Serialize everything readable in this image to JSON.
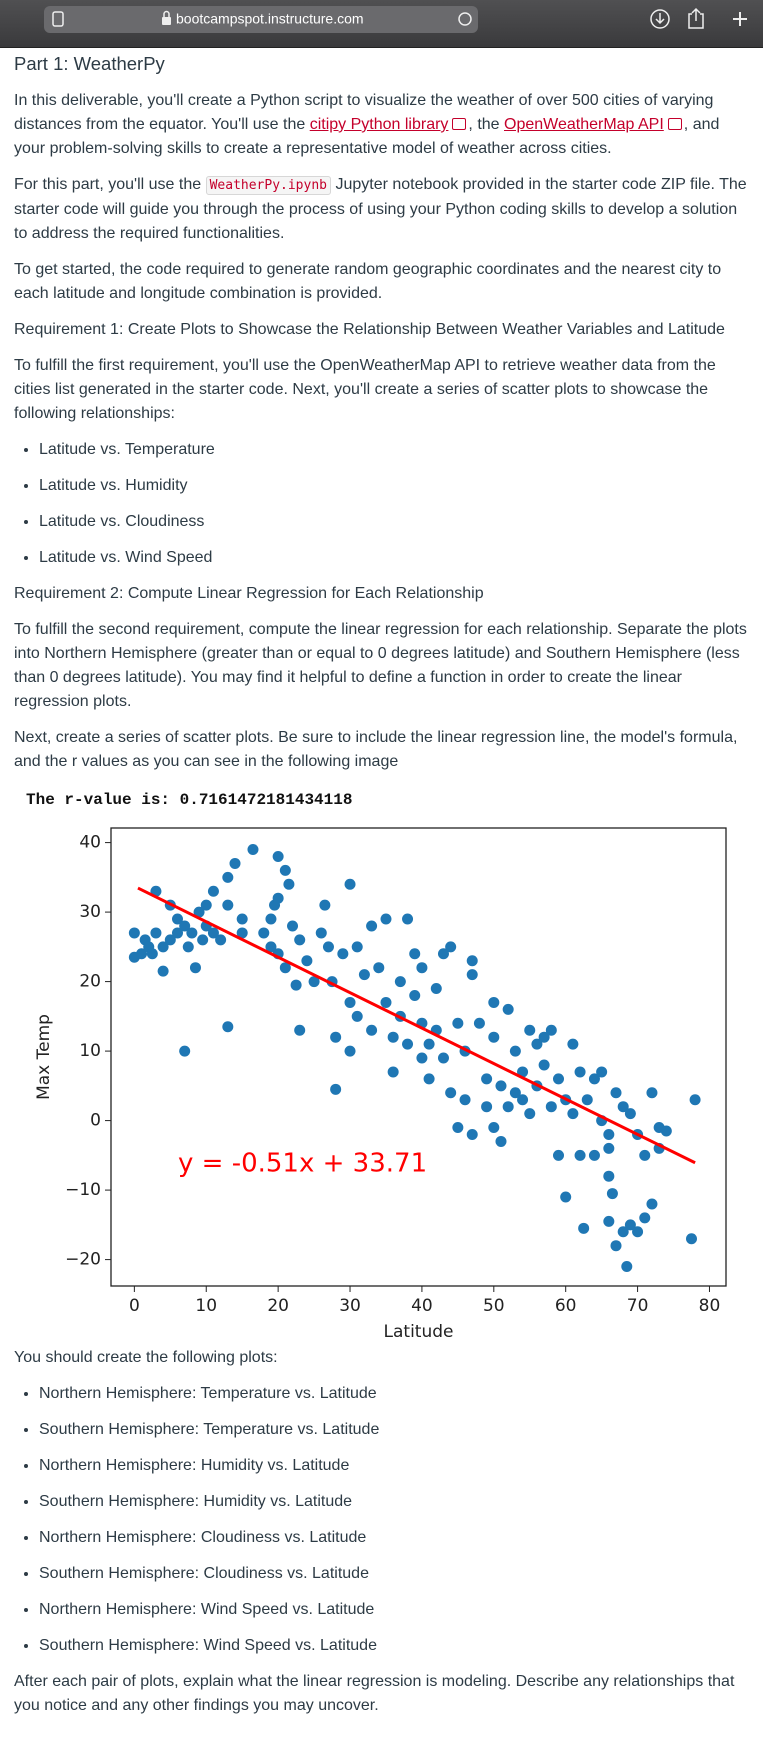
{
  "browser": {
    "url": "bootcampspot.instructure.com"
  },
  "document": {
    "title": "Part 1: WeatherPy",
    "intro": {
      "text_1": "In this deliverable, you'll create a Python script to visualize the weather of over 500 cities of varying distances from the equator. You'll use the ",
      "link_1": "citipy Python library",
      "text_2": ", the ",
      "link_2": "OpenWeatherMap API",
      "text_3": ", and your problem-solving skills to create a representative model of weather across cities."
    },
    "starter": {
      "text_1": "For this part, you'll use the ",
      "code": "WeatherPy.ipynb",
      "text_2": " Jupyter notebook provided in the starter code ZIP file. The starter code will guide you through the process of using your Python coding skills to develop a solution to address the required functionalities."
    },
    "get_started": "To get started, the code required to generate random geographic coordinates and the nearest city to each latitude and longitude combination is provided.",
    "requirement_1": "Requirement 1: Create Plots to Showcase the Relationship Between Weather Variables and Latitude",
    "requirement_1_text": "To fulfill the first requirement, you'll use the OpenWeatherMap API to retrieve weather data from the cities list generated in the starter code. Next, you'll create a series of scatter plots to showcase the following relationships:",
    "requirement_1_list": [
      "Latitude vs. Temperature",
      "Latitude vs. Humidity",
      "Latitude vs. Cloudiness",
      "Latitude vs. Wind Speed"
    ],
    "requirement_2": "Requirement 2: Compute Linear Regression for Each Relationship",
    "requirement_2_text": "To fulfill the second requirement, compute the linear regression for each relationship. Separate the plots into Northern Hemisphere (greater than or equal to 0 degrees latitude) and Southern Hemisphere (less than 0 degrees latitude). You may find it helpful to define a function in order to create the linear regression plots.",
    "next_text": "Next, create a series of scatter plots. Be sure to include the linear regression line, the model's formula, and the r values as you can see in the following image",
    "r_value": "The r-value is: 0.7161472181434118",
    "plots_intro": "You should create the following plots:",
    "plots_list": [
      "Northern Hemisphere: Temperature vs. Latitude",
      "Southern Hemisphere: Temperature vs. Latitude",
      "Northern Hemisphere: Humidity vs. Latitude",
      "Southern Hemisphere: Humidity vs. Latitude",
      "Northern Hemisphere: Cloudiness vs. Latitude",
      "Southern Hemisphere: Cloudiness vs. Latitude",
      "Northern Hemisphere: Wind Speed vs. Latitude",
      "Southern Hemisphere: Wind Speed vs. Latitude"
    ],
    "closing": "After each pair of plots, explain what the linear regression is modeling. Describe any relationships that you notice and any other findings you may uncover."
  },
  "chart_data": {
    "type": "scatter",
    "xlabel": "Latitude",
    "ylabel": "Max Temp",
    "color": "#1f77b4",
    "x": [
      0,
      0,
      1,
      1.5,
      2,
      2.5,
      3,
      3,
      4,
      4,
      5,
      5,
      6,
      6,
      7,
      7.5,
      8,
      8.5,
      9,
      9.5,
      10,
      10,
      11,
      11,
      7,
      12,
      13,
      13,
      14,
      13,
      15,
      15,
      16.5,
      18,
      19,
      19,
      19.5,
      20,
      20,
      21,
      21.5,
      20,
      21,
      22,
      22.5,
      23,
      23,
      24,
      25,
      26,
      26.5,
      27,
      27.5,
      28,
      28,
      29,
      30,
      30,
      30,
      31,
      31,
      32,
      33,
      33,
      34,
      35,
      35,
      36,
      36,
      37,
      37,
      38,
      38,
      39,
      39,
      40,
      40,
      40,
      41,
      41,
      42,
      42,
      43,
      43,
      44,
      44,
      45,
      45,
      46,
      46,
      47,
      47,
      47,
      48,
      49,
      49,
      50,
      50,
      50,
      51,
      51,
      52,
      52,
      53,
      53,
      54,
      54,
      55,
      55,
      56,
      56,
      57,
      57,
      58,
      58,
      59,
      59,
      60,
      60,
      61,
      61,
      62,
      62,
      62.5,
      63,
      64,
      64,
      65,
      65,
      66,
      66,
      66,
      66,
      66.5,
      67,
      67,
      68,
      68,
      68.5,
      69,
      69,
      70,
      70,
      71,
      71,
      72,
      72,
      73,
      73,
      74,
      77.5,
      78
    ],
    "values": [
      27,
      23.5,
      24,
      26,
      25,
      24,
      27,
      33,
      25,
      21.5,
      26,
      31,
      27,
      29,
      28,
      25,
      27,
      22,
      30,
      26,
      28,
      31,
      27,
      33,
      10,
      26,
      35,
      31,
      37,
      13.5,
      29,
      27,
      39,
      27,
      25,
      29,
      31,
      38,
      32,
      36,
      34,
      24,
      22,
      28,
      19.5,
      26,
      13,
      23,
      20,
      27,
      31,
      25,
      20,
      4.5,
      12,
      24,
      34,
      10,
      17,
      25,
      15,
      21,
      28,
      13,
      22,
      29,
      17,
      12,
      7,
      20,
      15,
      29,
      11,
      24,
      18,
      14,
      9,
      22,
      11,
      6,
      19,
      13,
      24,
      9,
      25,
      4,
      14,
      -1,
      3,
      10,
      23,
      -2,
      21,
      14,
      6,
      2,
      12,
      -1,
      17,
      5,
      -3,
      16,
      2,
      10,
      4,
      7,
      3,
      13,
      1,
      11,
      5,
      8,
      12,
      13,
      2,
      6,
      -5,
      3,
      -11,
      11,
      1,
      7,
      -5,
      -15.5,
      3,
      6,
      -5,
      0,
      7,
      -2,
      -4,
      -8,
      -14.5,
      -10.5,
      4,
      -18,
      2,
      -16,
      -21,
      1,
      -15,
      -2,
      -16,
      -5,
      -14,
      4,
      -12,
      -4,
      -1,
      -1.5,
      -17,
      3
    ],
    "regression": {
      "x": [
        0.5,
        78
      ],
      "values": [
        33.455,
        -6.07
      ],
      "color": "#ff0000"
    },
    "annotation": {
      "text": "y = -0.51x + 33.71",
      "color": "#ff0000"
    },
    "xlim": [
      -3.25,
      82.3
    ],
    "ylim": [
      -23.8,
      42.1
    ],
    "xticks": [
      0,
      10,
      20,
      30,
      40,
      50,
      60,
      70,
      80
    ],
    "yticks": [
      {
        "value": -20,
        "label": "−20"
      },
      {
        "value": -10,
        "label": "−10"
      },
      0,
      10,
      20,
      30,
      40
    ]
  }
}
